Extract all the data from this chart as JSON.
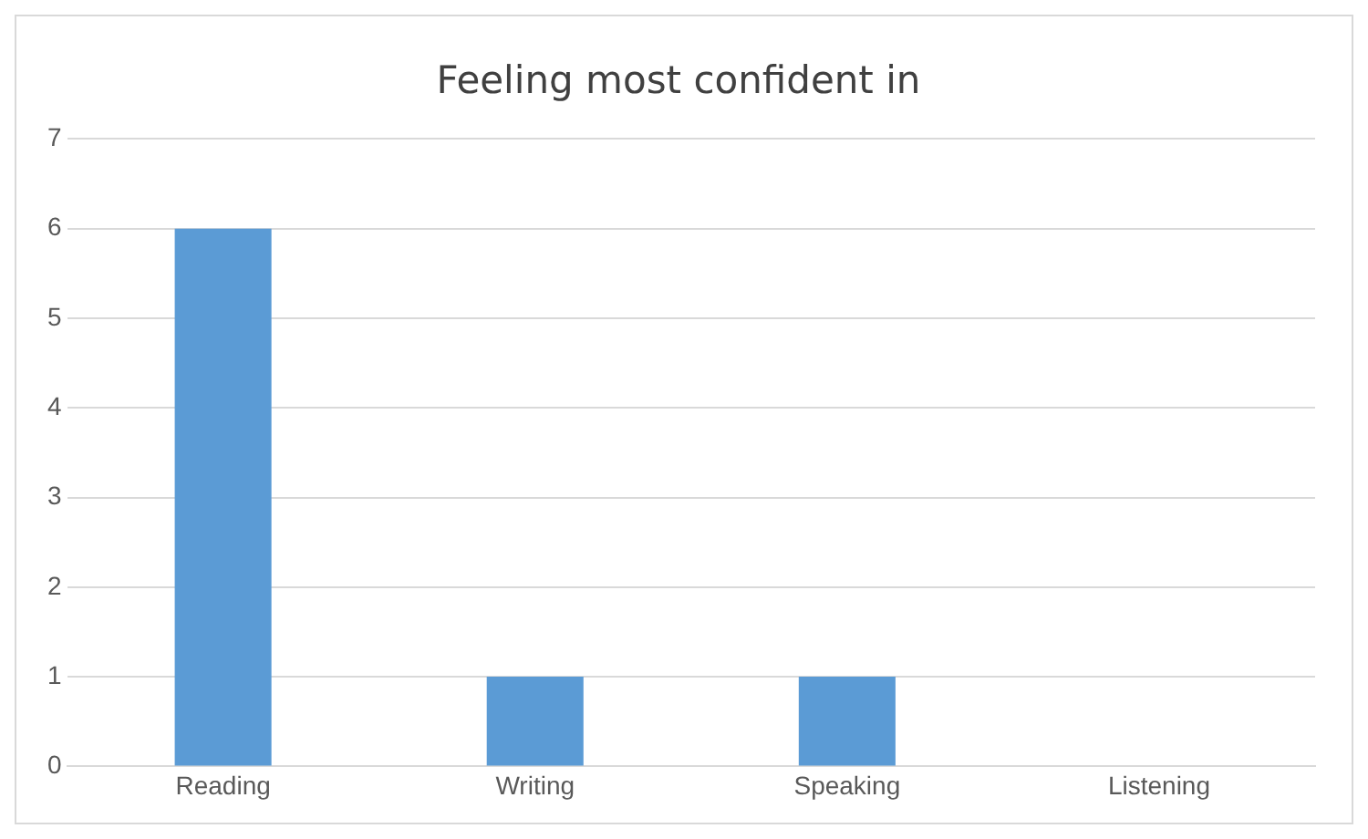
{
  "chart_data": {
    "type": "bar",
    "title": "Feeling most confident in",
    "categories": [
      "Reading",
      "Writing",
      "Speaking",
      "Listening"
    ],
    "values": [
      6,
      1,
      1,
      0
    ],
    "color": "#5b9bd5",
    "ylim": [
      0,
      7
    ],
    "yticks": [
      0,
      1,
      2,
      3,
      4,
      5,
      6,
      7
    ],
    "grid": "y",
    "legend": false
  }
}
